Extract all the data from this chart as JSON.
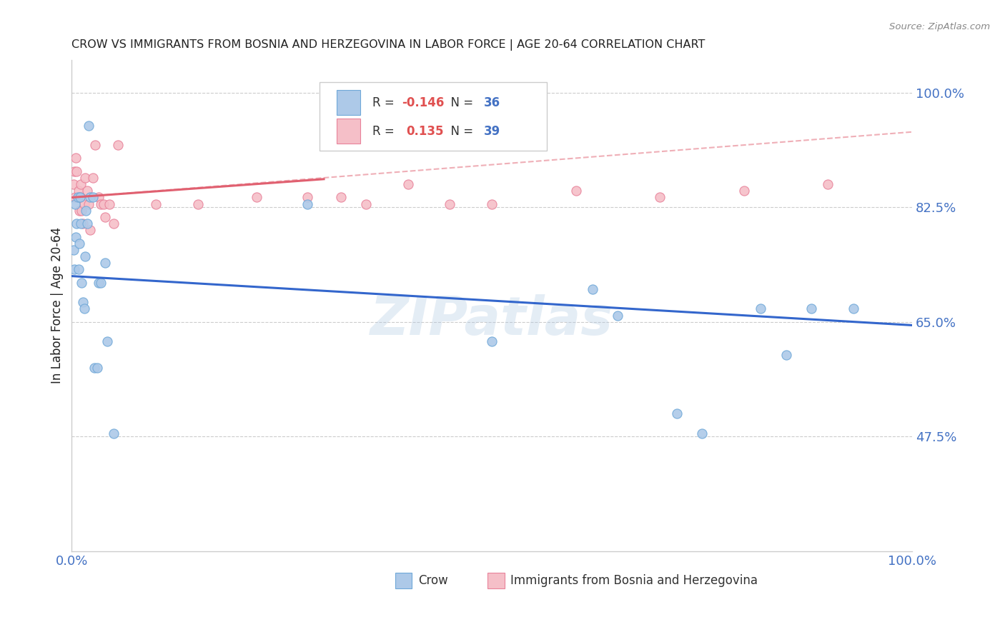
{
  "title": "CROW VS IMMIGRANTS FROM BOSNIA AND HERZEGOVINA IN LABOR FORCE | AGE 20-64 CORRELATION CHART",
  "source": "Source: ZipAtlas.com",
  "ylabel": "In Labor Force | Age 20-64",
  "watermark": "ZIPatlas",
  "xlim": [
    0.0,
    1.0
  ],
  "ylim": [
    0.3,
    1.05
  ],
  "yticks": [
    0.475,
    0.65,
    0.825,
    1.0
  ],
  "ytick_labels": [
    "47.5%",
    "65.0%",
    "82.5%",
    "100.0%"
  ],
  "xtick_labels": [
    "0.0%",
    "100.0%"
  ],
  "xtick_positions": [
    0.0,
    1.0
  ],
  "crow_color": "#adc9e8",
  "crow_edge_color": "#6fa8d8",
  "bh_color": "#f5bfc8",
  "bh_edge_color": "#e8829a",
  "trend_crow_color": "#3366cc",
  "trend_bh_color": "#e06070",
  "crow_R": -0.146,
  "crow_N": 36,
  "bh_R": 0.135,
  "bh_N": 39,
  "crow_x": [
    0.002,
    0.003,
    0.004,
    0.005,
    0.006,
    0.007,
    0.008,
    0.009,
    0.01,
    0.011,
    0.012,
    0.013,
    0.015,
    0.016,
    0.017,
    0.018,
    0.02,
    0.022,
    0.025,
    0.027,
    0.03,
    0.032,
    0.035,
    0.04,
    0.042,
    0.05,
    0.28,
    0.5,
    0.62,
    0.65,
    0.72,
    0.75,
    0.82,
    0.85,
    0.88,
    0.93
  ],
  "crow_y": [
    0.76,
    0.73,
    0.83,
    0.78,
    0.8,
    0.84,
    0.73,
    0.77,
    0.84,
    0.8,
    0.71,
    0.68,
    0.67,
    0.75,
    0.82,
    0.8,
    0.95,
    0.84,
    0.84,
    0.58,
    0.58,
    0.71,
    0.71,
    0.74,
    0.62,
    0.48,
    0.83,
    0.62,
    0.7,
    0.66,
    0.51,
    0.48,
    0.67,
    0.6,
    0.67,
    0.67
  ],
  "bh_x": [
    0.002,
    0.003,
    0.004,
    0.005,
    0.006,
    0.007,
    0.008,
    0.009,
    0.01,
    0.011,
    0.012,
    0.013,
    0.015,
    0.016,
    0.018,
    0.02,
    0.022,
    0.025,
    0.028,
    0.032,
    0.035,
    0.038,
    0.04,
    0.045,
    0.05,
    0.055,
    0.1,
    0.15,
    0.22,
    0.28,
    0.32,
    0.35,
    0.4,
    0.45,
    0.5,
    0.6,
    0.7,
    0.8,
    0.9
  ],
  "bh_y": [
    0.86,
    0.88,
    0.84,
    0.9,
    0.88,
    0.84,
    0.85,
    0.82,
    0.84,
    0.86,
    0.82,
    0.8,
    0.83,
    0.87,
    0.85,
    0.83,
    0.79,
    0.87,
    0.92,
    0.84,
    0.83,
    0.83,
    0.81,
    0.83,
    0.8,
    0.92,
    0.83,
    0.83,
    0.84,
    0.84,
    0.84,
    0.83,
    0.86,
    0.83,
    0.83,
    0.85,
    0.84,
    0.85,
    0.86
  ],
  "crow_trend": [
    0.0,
    1.0,
    0.72,
    0.645
  ],
  "bh_trend_solid": [
    0.0,
    0.3,
    0.84,
    0.868
  ],
  "bh_trend_dash": [
    0.0,
    1.0,
    0.84,
    0.94
  ],
  "legend_crow_label": "Crow",
  "legend_bh_label": "Immigrants from Bosnia and Herzegovina",
  "title_color": "#222222",
  "axis_color": "#4472c4",
  "grid_color": "#cccccc",
  "background_color": "#ffffff",
  "marker_size": 90
}
